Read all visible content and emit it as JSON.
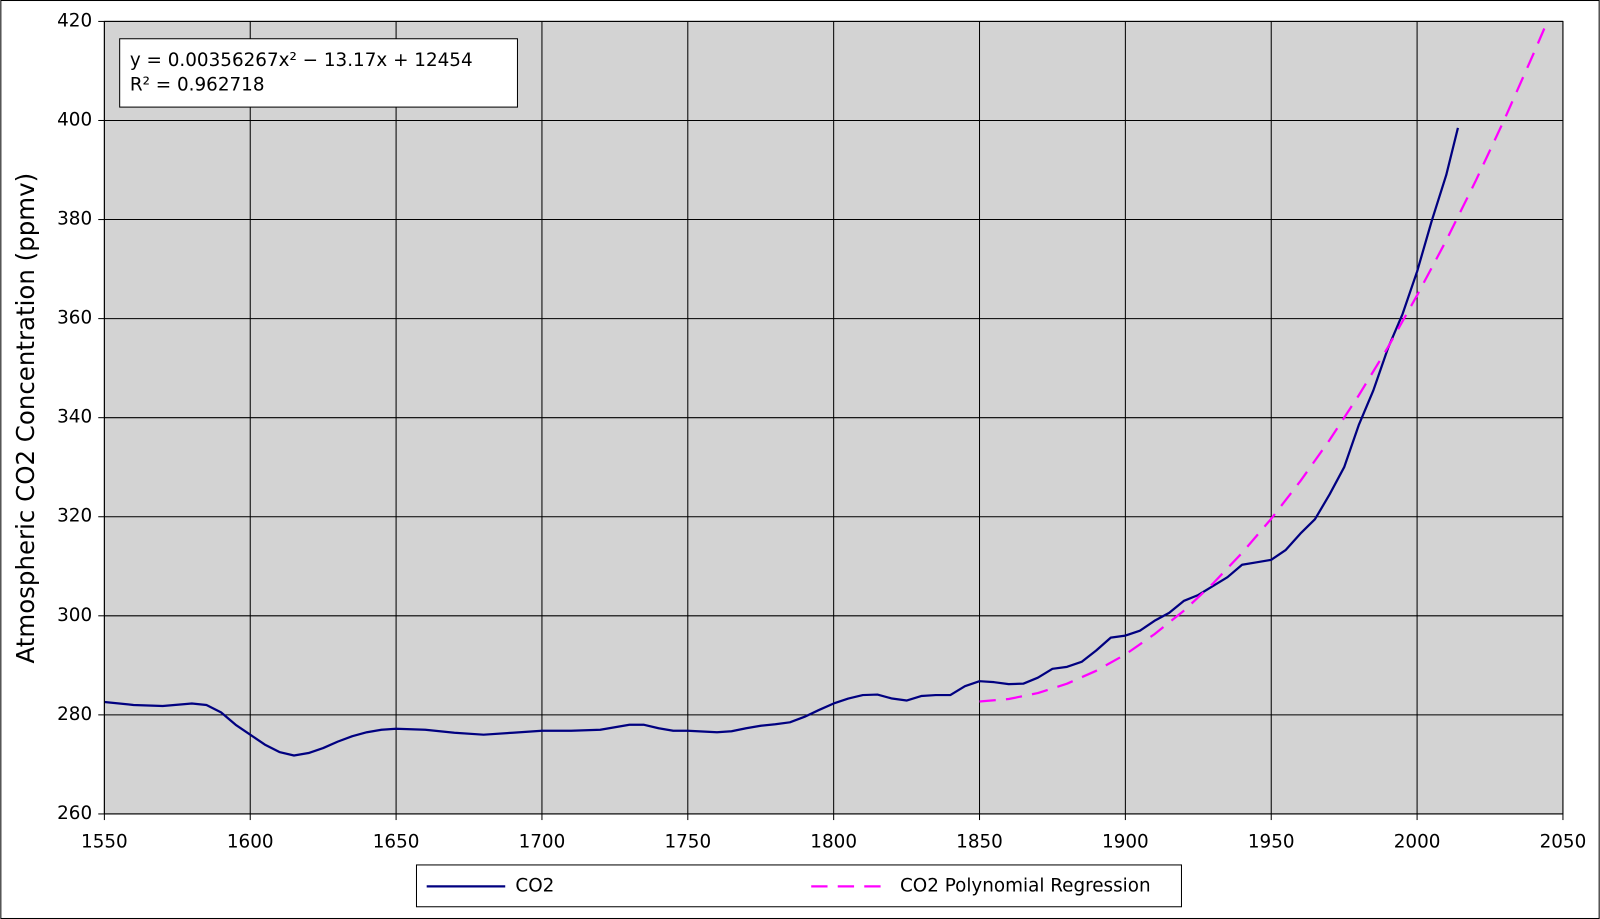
{
  "chart_data": {
    "type": "line",
    "y_label": "Atmospheric CO2 Concentration (ppmv)",
    "annotations": [
      "y = 0.00356267x² − 13.17x + 12454",
      "R² = 0.962718"
    ],
    "xlim": [
      1550,
      2050
    ],
    "xticks": [
      1550,
      1600,
      1650,
      1700,
      1750,
      1800,
      1850,
      1900,
      1950,
      2000,
      2050
    ],
    "ylim": [
      260,
      420
    ],
    "yticks": [
      260,
      280,
      300,
      320,
      340,
      360,
      380,
      400,
      420
    ],
    "grid": true,
    "legend": "bottom",
    "series": [
      {
        "name": "CO2",
        "color": "#000080",
        "dashed": false,
        "x": [
          1550,
          1560,
          1570,
          1580,
          1585,
          1590,
          1595,
          1600,
          1605,
          1610,
          1615,
          1620,
          1625,
          1630,
          1635,
          1640,
          1645,
          1650,
          1660,
          1670,
          1680,
          1690,
          1700,
          1710,
          1720,
          1730,
          1735,
          1740,
          1745,
          1750,
          1760,
          1765,
          1770,
          1775,
          1780,
          1785,
          1790,
          1795,
          1800,
          1805,
          1810,
          1815,
          1820,
          1825,
          1830,
          1835,
          1840,
          1845,
          1850,
          1855,
          1860,
          1865,
          1870,
          1875,
          1880,
          1885,
          1890,
          1895,
          1900,
          1905,
          1910,
          1915,
          1920,
          1925,
          1930,
          1935,
          1940,
          1945,
          1950,
          1955,
          1960,
          1965,
          1970,
          1975,
          1980,
          1985,
          1990,
          1995,
          2000,
          2005,
          2010,
          2014
        ],
        "values": [
          282.6,
          282,
          281.8,
          282.3,
          282,
          280.5,
          278,
          276,
          274,
          272.5,
          271.8,
          272.3,
          273.3,
          274.6,
          275.7,
          276.5,
          277,
          277.2,
          277,
          276.4,
          276,
          276.4,
          276.8,
          276.8,
          277,
          278,
          278,
          277.3,
          276.8,
          276.8,
          276.5,
          276.7,
          277.3,
          277.8,
          278.1,
          278.5,
          279.6,
          281,
          282.3,
          283.3,
          284,
          284.1,
          283.3,
          282.9,
          283.8,
          284,
          284,
          285.8,
          286.8,
          286.6,
          286.2,
          286.3,
          287.5,
          289.3,
          289.7,
          290.7,
          293,
          295.6,
          296,
          297,
          299,
          300.6,
          303,
          304.2,
          306,
          307.8,
          310.3,
          310.8,
          311.3,
          313.3,
          316.6,
          319.5,
          324.5,
          330,
          338.5,
          345.5,
          354,
          360.9,
          369.5,
          379.7,
          389,
          398.5
        ]
      },
      {
        "name": "CO2 Polynomial Regression",
        "color": "#ff00ff",
        "dashed": true,
        "x": [
          1850,
          1860,
          1870,
          1880,
          1890,
          1900,
          1910,
          1920,
          1930,
          1940,
          1950,
          1960,
          1970,
          1980,
          1990,
          2000,
          2010,
          2020,
          2030,
          2040,
          2044
        ],
        "values": [
          282.7,
          283.2,
          284.4,
          286.3,
          288.9,
          292.2,
          296.3,
          301,
          306.5,
          312.7,
          319.6,
          327.2,
          335.5,
          344.5,
          354.2,
          364.7,
          375.8,
          387.7,
          400.3,
          413.6,
          419.1
        ]
      }
    ]
  }
}
